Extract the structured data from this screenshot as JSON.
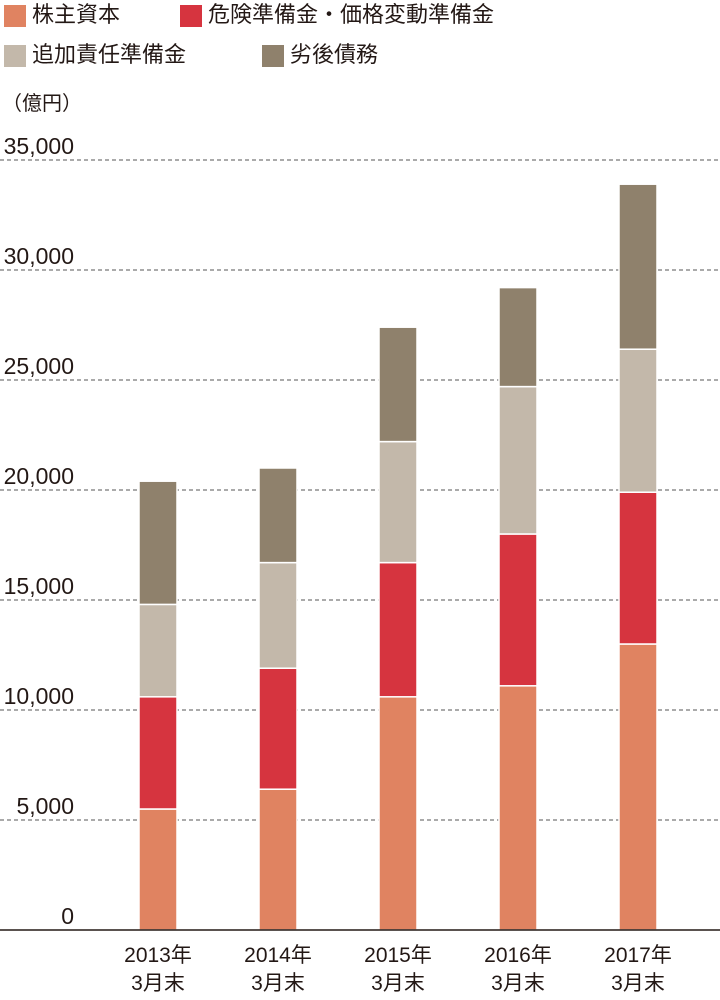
{
  "chart_data": {
    "type": "bar",
    "stacked": true,
    "ylabel": "（億円）",
    "ylim": [
      0,
      35000
    ],
    "yticks": [
      0,
      5000,
      10000,
      15000,
      20000,
      25000,
      30000,
      35000
    ],
    "ytick_labels": [
      "0",
      "5,000",
      "10,000",
      "15,000",
      "20,000",
      "25,000",
      "30,000",
      "35,000"
    ],
    "grid": "horizontal-dashed",
    "legend_position": "top-left",
    "categories": [
      [
        "2013年",
        "3月末"
      ],
      [
        "2014年",
        "3月末"
      ],
      [
        "2015年",
        "3月末"
      ],
      [
        "2016年",
        "3月末"
      ],
      [
        "2017年",
        "3月末"
      ]
    ],
    "series": [
      {
        "name": "株主資本",
        "color": "#e08361",
        "values": [
          5500,
          6400,
          10600,
          11100,
          13000
        ]
      },
      {
        "name": "危険準備金・価格変動準備金",
        "color": "#d6343f",
        "values": [
          5100,
          5500,
          6100,
          6900,
          6900
        ]
      },
      {
        "name": "追加責任準備金",
        "color": "#c3b8aa",
        "values": [
          4200,
          4800,
          5500,
          6700,
          6500
        ]
      },
      {
        "name": "劣後債務",
        "color": "#8f816c",
        "values": [
          5600,
          4300,
          5200,
          4500,
          7500
        ]
      }
    ]
  }
}
